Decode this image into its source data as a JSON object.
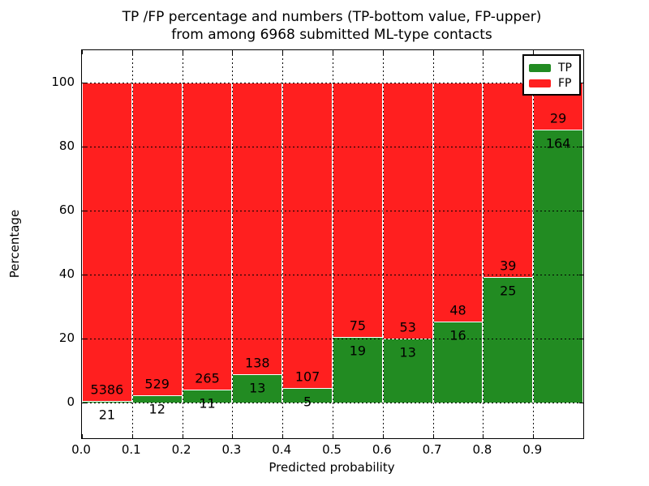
{
  "title": {
    "line1": "TP /FP percentage and numbers (TP-bottom value, FP-upper)",
    "line2": "from among 6968 submitted ML-type contacts"
  },
  "axes": {
    "xlabel": "Predicted probability",
    "ylabel": "Percentage",
    "x_tick_labels": [
      "0.0",
      "0.1",
      "0.2",
      "0.3",
      "0.4",
      "0.5",
      "0.6",
      "0.7",
      "0.8",
      "0.9"
    ],
    "y_tick_labels": [
      "0",
      "20",
      "40",
      "60",
      "80",
      "100"
    ],
    "y_tick_values": [
      0,
      20,
      40,
      60,
      80,
      100
    ],
    "xlim": [
      0.0,
      1.0
    ],
    "ylim": [
      -11,
      110
    ],
    "grid": "dotted"
  },
  "legend": {
    "position": "upper-right",
    "entries": [
      {
        "label": "TP",
        "color": "#228b22"
      },
      {
        "label": "FP",
        "color": "#ff1f1f"
      }
    ]
  },
  "colors": {
    "tp": "#228b22",
    "fp": "#ff1f1f",
    "bar_edge": "#ffffff",
    "grid": "#000000",
    "background": "#ffffff"
  },
  "chart_data": {
    "type": "bar",
    "stacked": true,
    "normalized_to_percent": true,
    "title": "TP /FP percentage and numbers (TP-bottom value, FP-upper) from among 6968 submitted ML-type contacts",
    "xlabel": "Predicted probability",
    "ylabel": "Percentage",
    "total_contacts": 6968,
    "bin_edges": [
      0.0,
      0.1,
      0.2,
      0.3,
      0.4,
      0.5,
      0.6,
      0.7,
      0.8,
      0.9,
      1.0
    ],
    "categories": [
      "0.0-0.1",
      "0.1-0.2",
      "0.2-0.3",
      "0.3-0.4",
      "0.4-0.5",
      "0.5-0.6",
      "0.6-0.7",
      "0.7-0.8",
      "0.8-0.9",
      "0.9-1.0"
    ],
    "series": [
      {
        "name": "TP",
        "color": "#228b22",
        "values": [
          21,
          12,
          11,
          13,
          5,
          19,
          13,
          16,
          25,
          164
        ]
      },
      {
        "name": "FP",
        "color": "#ff1f1f",
        "values": [
          5386,
          529,
          265,
          138,
          107,
          75,
          53,
          48,
          39,
          29
        ]
      }
    ],
    "tp_percent": [
      0.39,
      2.22,
      3.99,
      8.61,
      4.46,
      20.21,
      19.7,
      25.0,
      39.06,
      84.97
    ],
    "ylim": [
      -11,
      110
    ],
    "xlim": [
      0.0,
      1.0
    ]
  }
}
